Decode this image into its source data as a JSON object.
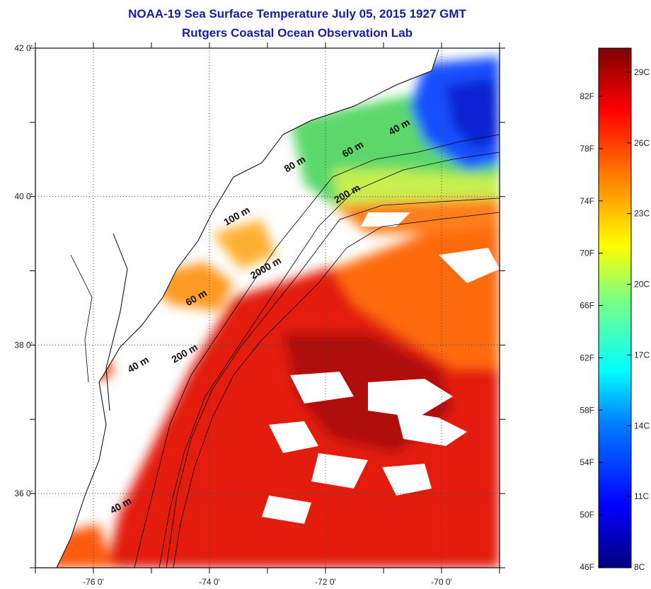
{
  "title": {
    "line1": "NOAA-19 Sea Surface Temperature July 05, 2015 1927 GMT",
    "line2": "Rutgers Coastal Ocean Observation Lab"
  },
  "map": {
    "lon_ticks": [
      {
        "value": -76,
        "label": "-76 0'"
      },
      {
        "value": -74,
        "label": "-74 0'"
      },
      {
        "value": -72,
        "label": "-72 0'"
      },
      {
        "value": -70,
        "label": "-70 0'"
      }
    ],
    "lat_ticks": [
      {
        "value": 42,
        "label": "42 0'"
      },
      {
        "value": 40,
        "label": "40 0'"
      },
      {
        "value": 38,
        "label": "38 0'"
      },
      {
        "value": 36,
        "label": "36 0'"
      }
    ],
    "lon_range": [
      -77,
      -69
    ],
    "lat_range": [
      35,
      42
    ],
    "depth_contours": [
      {
        "label": "40 m",
        "lon": -70.7,
        "lat": 40.9
      },
      {
        "label": "60 m",
        "lon": -71.5,
        "lat": 40.6
      },
      {
        "label": "80 m",
        "lon": -72.5,
        "lat": 40.4
      },
      {
        "label": "200 m",
        "lon": -71.6,
        "lat": 40.0
      },
      {
        "label": "100 m",
        "lon": -73.5,
        "lat": 39.7
      },
      {
        "label": "2000 m",
        "lon": -73.0,
        "lat": 39.0
      },
      {
        "label": "60 m",
        "lon": -74.2,
        "lat": 38.6
      },
      {
        "label": "200 m",
        "lon": -74.4,
        "lat": 37.85
      },
      {
        "label": "40 m",
        "lon": -75.2,
        "lat": 37.7
      },
      {
        "label": "40 m",
        "lon": -75.5,
        "lat": 35.8
      }
    ]
  },
  "colorbar": {
    "fahrenheit_labels": [
      "82F",
      "78F",
      "74F",
      "70F",
      "66F",
      "62F",
      "58F",
      "54F",
      "50F",
      "46F"
    ],
    "celsius_labels": [
      "29C",
      "26C",
      "23C",
      "20C",
      "17C",
      "14C",
      "11C",
      "8C"
    ],
    "colors": [
      "#000080",
      "#0000ff",
      "#0080ff",
      "#00ffff",
      "#80ff80",
      "#ffff00",
      "#ff8000",
      "#ff0000",
      "#800000"
    ]
  }
}
